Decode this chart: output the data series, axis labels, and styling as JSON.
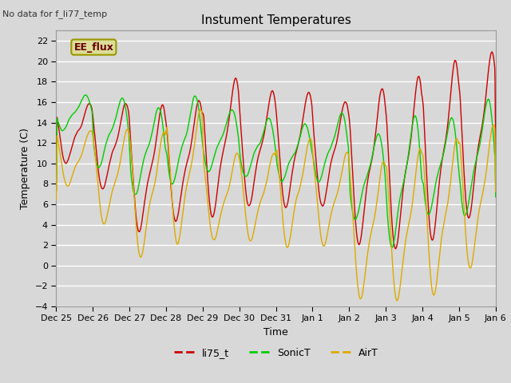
{
  "title": "Instument Temperatures",
  "xlabel": "Time",
  "ylabel": "Temperature (C)",
  "note": "No data for f_li77_temp",
  "legend_label": "EE_flux",
  "ylim": [
    -4,
    23
  ],
  "yticks": [
    -4,
    -2,
    0,
    2,
    4,
    6,
    8,
    10,
    12,
    14,
    16,
    18,
    20,
    22
  ],
  "xtick_labels": [
    "Dec 25",
    "Dec 26",
    "Dec 27",
    "Dec 28",
    "Dec 29",
    "Dec 30",
    "Dec 31",
    "Jan 1",
    "Jan 2",
    "Jan 3",
    "Jan 4",
    "Jan 5",
    "Jan 6"
  ],
  "series_colors": {
    "li75_t": "#cc0000",
    "SonicT": "#00cc00",
    "AirT": "#ddaa00"
  },
  "background_color": "#d8d8d8",
  "plot_bg_color": "#d8d8d8",
  "grid_color": "#ffffff",
  "legend_box_color": "#dddd99",
  "legend_box_edge": "#999900",
  "legend_text_color": "#660000",
  "figsize": [
    6.4,
    4.8
  ],
  "dpi": 100
}
